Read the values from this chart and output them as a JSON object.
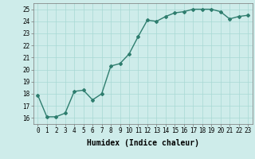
{
  "x": [
    0,
    1,
    2,
    3,
    4,
    5,
    6,
    7,
    8,
    9,
    10,
    11,
    12,
    13,
    14,
    15,
    16,
    17,
    18,
    19,
    20,
    21,
    22,
    23
  ],
  "y": [
    17.9,
    16.1,
    16.1,
    16.4,
    18.2,
    18.3,
    17.5,
    18.0,
    20.3,
    20.5,
    21.3,
    22.75,
    24.1,
    24.0,
    24.4,
    24.7,
    24.8,
    25.0,
    25.0,
    25.0,
    24.8,
    24.2,
    24.4,
    24.5
  ],
  "line_color": "#2e7d6e",
  "marker": "D",
  "marker_size": 2.0,
  "bg_color": "#ceecea",
  "grid_color": "#a8d8d4",
  "xlabel": "Humidex (Indice chaleur)",
  "xlim": [
    -0.5,
    23.5
  ],
  "ylim": [
    15.5,
    25.5
  ],
  "yticks": [
    16,
    17,
    18,
    19,
    20,
    21,
    22,
    23,
    24,
    25
  ],
  "xticks": [
    0,
    1,
    2,
    3,
    4,
    5,
    6,
    7,
    8,
    9,
    10,
    11,
    12,
    13,
    14,
    15,
    16,
    17,
    18,
    19,
    20,
    21,
    22,
    23
  ],
  "tick_fontsize": 5.5,
  "xlabel_fontsize": 7.0,
  "line_width": 1.0
}
